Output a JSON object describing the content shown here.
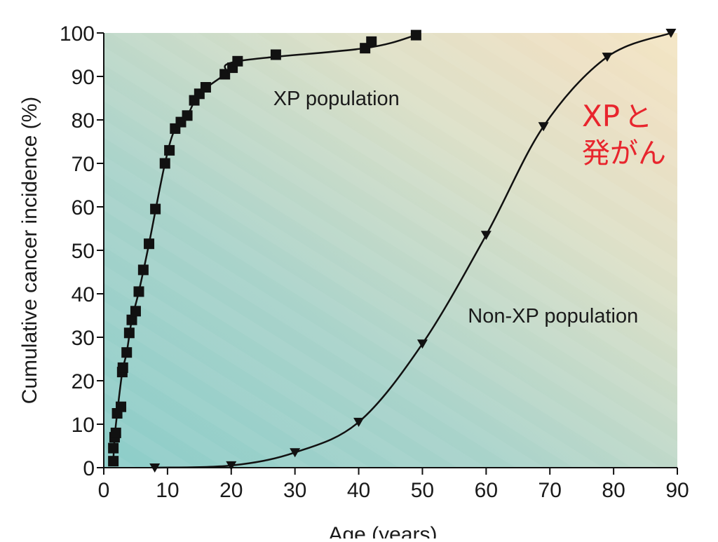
{
  "chart_data": {
    "type": "scatter",
    "title": "",
    "xlabel": "Age (years)",
    "ylabel": "Cumulative cancer incidence (%)",
    "xlim": [
      0,
      90
    ],
    "ylim": [
      0,
      100
    ],
    "x_ticks": [
      0,
      10,
      20,
      30,
      40,
      50,
      60,
      70,
      80,
      90
    ],
    "y_ticks": [
      0,
      10,
      20,
      30,
      40,
      50,
      60,
      70,
      80,
      90,
      100
    ],
    "x_tick_labels": [
      "0",
      "10",
      "20",
      "30",
      "40",
      "50",
      "60",
      "70",
      "80",
      "90"
    ],
    "y_tick_labels": [
      "0",
      "10",
      "20",
      "30",
      "40",
      "50",
      "60",
      "70",
      "80",
      "90",
      "100"
    ],
    "grid": false,
    "legend": "none",
    "series": [
      {
        "name": "XP population",
        "marker": "square",
        "color": "#111111",
        "x": [
          1.5,
          1.5,
          1.7,
          1.9,
          2.1,
          2.7,
          2.9,
          3.0,
          3.6,
          4.0,
          4.4,
          5.0,
          5.5,
          6.2,
          7.1,
          8.1,
          9.6,
          10.3,
          11.2,
          12.1,
          13.1,
          14.2,
          15.0,
          16.0,
          19.0,
          20.2,
          21.0,
          27.0,
          41.0,
          42.0,
          49.0
        ],
        "y": [
          1.5,
          4.5,
          7.0,
          8.0,
          12.5,
          14.0,
          22.0,
          23.0,
          26.5,
          31.0,
          34.0,
          36.0,
          40.5,
          45.5,
          51.5,
          59.5,
          70.0,
          73.0,
          78.0,
          79.5,
          81.0,
          84.5,
          86.0,
          87.5,
          90.5,
          92.0,
          93.5,
          95.0,
          96.5,
          98.0,
          99.5
        ]
      },
      {
        "name": "Non-XP population",
        "marker": "triangle-down",
        "color": "#111111",
        "x": [
          8,
          20,
          30,
          40,
          50,
          60,
          69,
          79,
          89
        ],
        "y": [
          0,
          0.5,
          3.5,
          10.5,
          28.5,
          53.5,
          78.5,
          94.5,
          100
        ]
      }
    ],
    "annotations": [
      {
        "text": "XP population",
        "x": 36.5,
        "y": 85
      },
      {
        "text": "Non-XP population",
        "x": 70.5,
        "y": 35
      }
    ]
  },
  "overlay_note": {
    "line1_latin": "XP",
    "line1_kana": "と",
    "line2": "発がん",
    "color": "#e8252d"
  }
}
